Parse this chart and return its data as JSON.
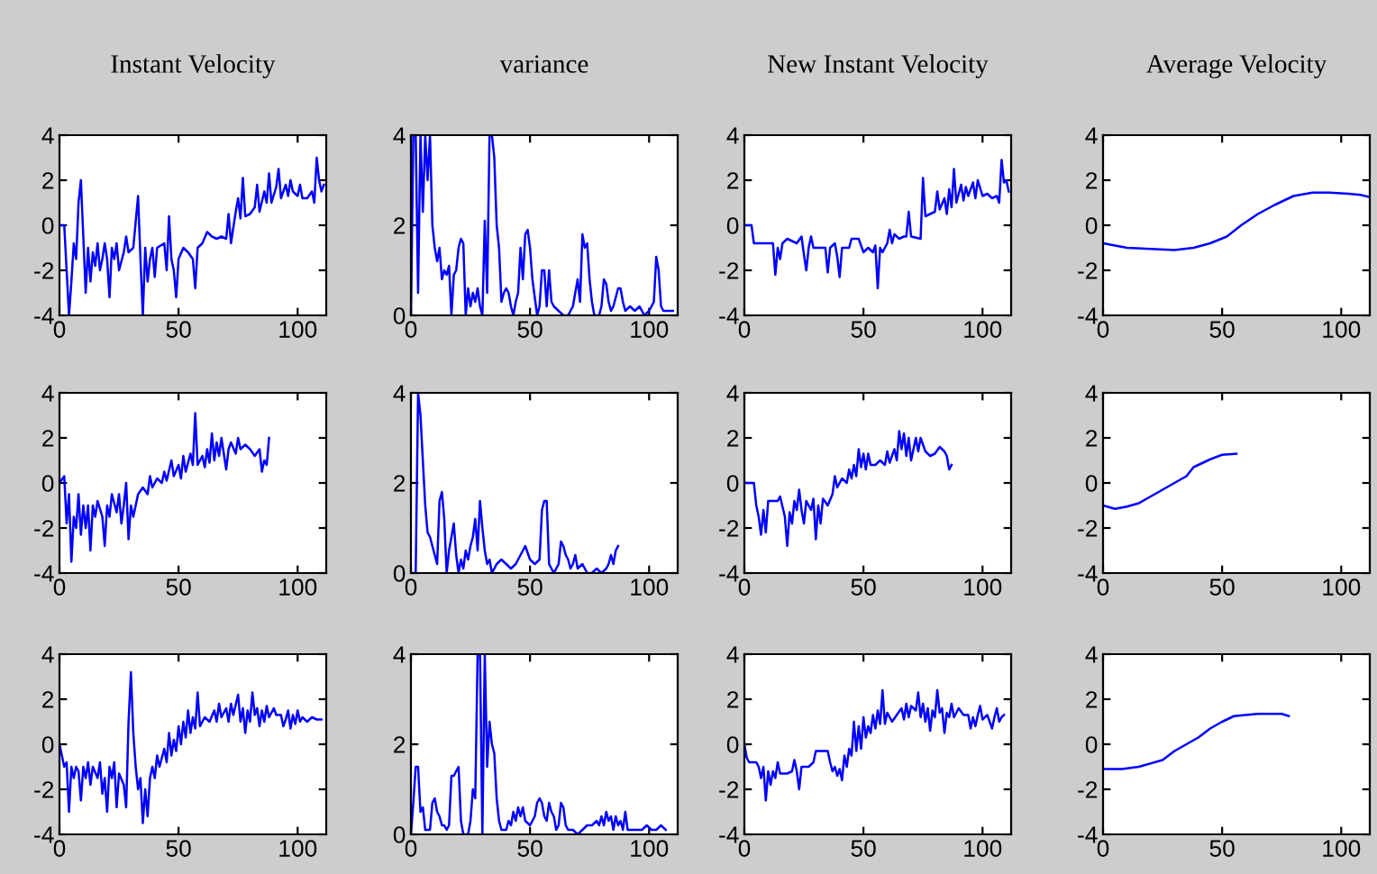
{
  "chart_data": [
    {
      "type": "line",
      "title": "Instant Velocity",
      "xlim": [
        0,
        112
      ],
      "xticks": [
        0,
        50,
        100
      ],
      "ylim": [
        -4,
        4
      ],
      "yticks": [
        -4,
        -2,
        0,
        2,
        4
      ],
      "series": [
        {
          "color": "#0000ff",
          "x": [
            0,
            2,
            3,
            4,
            5,
            6,
            7,
            8,
            9,
            10,
            11,
            12,
            13,
            14,
            15,
            16,
            17,
            18,
            19,
            20,
            21,
            22,
            23,
            24,
            25,
            27,
            28,
            29,
            31,
            33,
            34,
            35,
            36,
            37,
            38,
            39,
            40,
            41,
            44,
            45,
            46,
            47,
            48,
            49,
            50,
            52,
            54,
            56,
            57,
            58,
            60,
            62,
            64,
            66,
            68,
            70,
            71,
            72,
            74,
            75,
            76,
            77,
            78,
            80,
            82,
            83,
            84,
            86,
            87,
            88,
            89,
            91,
            92,
            93,
            95,
            96,
            97,
            98,
            100,
            101,
            102,
            104,
            106,
            107,
            108,
            109,
            110,
            111
          ],
          "values": [
            0,
            0,
            -2,
            -4,
            -2.5,
            -0.8,
            -1.5,
            1,
            2,
            -0.5,
            -3,
            -1,
            -2.5,
            -1.2,
            -1.8,
            -0.8,
            -2,
            -1.5,
            -0.8,
            -1.5,
            -3.2,
            -1,
            -1.5,
            -0.8,
            -2,
            -1.2,
            -0.5,
            -1.2,
            -1,
            1.3,
            -1.5,
            -4,
            -1,
            -2.5,
            -1.5,
            -1,
            -2.3,
            -1,
            -0.8,
            -2,
            0.4,
            -1.5,
            -2,
            -3.2,
            -1.5,
            -1,
            -1.2,
            -1.5,
            -2.8,
            -1,
            -0.8,
            -0.3,
            -0.5,
            -0.6,
            -0.5,
            -0.6,
            0.5,
            -0.8,
            0.6,
            1.2,
            0.3,
            2.1,
            0.4,
            0.5,
            0.8,
            1.8,
            0.6,
            1.5,
            1,
            2.3,
            1,
            1.7,
            2.5,
            1.2,
            1.8,
            1.3,
            2,
            1.5,
            1.3,
            1.8,
            1.2,
            1.2,
            1.5,
            1,
            3,
            2,
            1.5,
            1.8
          ]
        }
      ]
    },
    {
      "type": "line",
      "title": "variance",
      "xlim": [
        0,
        112
      ],
      "xticks": [
        0,
        50,
        100
      ],
      "ylim": [
        0,
        4
      ],
      "yticks": [
        0,
        2,
        4
      ],
      "series": [
        {
          "color": "#0000ff",
          "x": [
            0,
            1,
            2,
            3,
            4,
            5,
            6,
            7,
            8,
            9,
            10,
            11,
            12,
            13,
            14,
            15,
            16,
            17,
            18,
            19,
            20,
            21,
            22,
            23,
            24,
            25,
            26,
            27,
            28,
            29,
            30,
            31,
            32,
            33,
            34,
            35,
            36,
            37,
            38,
            39,
            40,
            41,
            42,
            43,
            44,
            45,
            46,
            47,
            48,
            49,
            50,
            51,
            52,
            53,
            54,
            55,
            56,
            57,
            58,
            59,
            60,
            62,
            64,
            66,
            68,
            69,
            70,
            71,
            72,
            73,
            74,
            75,
            76,
            77,
            79,
            80,
            81,
            82,
            83,
            84,
            85,
            86,
            87,
            88,
            89,
            90,
            92,
            94,
            96,
            98,
            100,
            102,
            103,
            104,
            105,
            106,
            108,
            110
          ],
          "values": [
            0,
            4,
            4,
            0.5,
            4,
            2.3,
            4,
            3,
            4,
            2,
            1.5,
            1.2,
            1.5,
            0.8,
            1,
            0.9,
            1.1,
            0,
            0.9,
            1,
            1.5,
            1.7,
            1.6,
            0,
            0.6,
            0.2,
            0.5,
            0.3,
            0.6,
            0.2,
            0,
            2.1,
            0.5,
            4,
            4,
            3.5,
            2,
            1.5,
            0.3,
            0.5,
            0.6,
            0.5,
            0.2,
            0,
            0.3,
            0.5,
            1.5,
            0.8,
            1.8,
            1.9,
            1.5,
            0.8,
            0.4,
            0,
            0.2,
            1,
            1,
            0.2,
            1,
            0.3,
            0.2,
            0.1,
            0,
            0,
            0.2,
            0.5,
            0.8,
            0.3,
            1.8,
            1.5,
            1.6,
            0.8,
            0.3,
            0,
            0,
            0.2,
            0.8,
            0.7,
            0.3,
            0.1,
            0.2,
            0.4,
            0.6,
            0.6,
            0.3,
            0.1,
            0.2,
            0.1,
            0.2,
            0,
            0.1,
            0.3,
            1.3,
            1,
            0.2,
            0.1,
            0.1,
            0.1
          ]
        }
      ]
    },
    {
      "type": "line",
      "title": "New Instant Velocity",
      "xlim": [
        0,
        112
      ],
      "xticks": [
        0,
        50,
        100
      ],
      "ylim": [
        -4,
        4
      ],
      "yticks": [
        -4,
        -2,
        0,
        2,
        4
      ],
      "series": [
        {
          "color": "#0000ff",
          "x": [
            0,
            3,
            4,
            12,
            13,
            14,
            15,
            16,
            18,
            22,
            24,
            25,
            26,
            27,
            28,
            29,
            34,
            35,
            36,
            38,
            39,
            40,
            41,
            44,
            45,
            48,
            50,
            52,
            54,
            55,
            56,
            57,
            58,
            60,
            61,
            62,
            63,
            65,
            67,
            68,
            69,
            70,
            74,
            75,
            76,
            78,
            80,
            81,
            82,
            84,
            85,
            86,
            87,
            88,
            89,
            91,
            92,
            93,
            94,
            96,
            97,
            98,
            100,
            102,
            104,
            106,
            107,
            108,
            109,
            110,
            111
          ],
          "values": [
            0,
            0,
            -0.8,
            -0.8,
            -2.2,
            -1,
            -1.5,
            -0.8,
            -0.6,
            -0.8,
            -0.5,
            -1.3,
            -2,
            -1,
            -0.5,
            -1,
            -1,
            -2.1,
            -1,
            -0.8,
            -1.4,
            -2.3,
            -1,
            -1,
            -0.6,
            -0.6,
            -1.2,
            -1,
            -1.2,
            -0.9,
            -2.8,
            -1,
            -1.2,
            -0.8,
            -0.2,
            -0.8,
            -0.4,
            -0.6,
            -0.5,
            -0.5,
            0.6,
            -0.5,
            -0.6,
            2.1,
            0.4,
            0.5,
            0.6,
            1.5,
            0.7,
            1.2,
            0.5,
            1.6,
            0.8,
            2.5,
            1,
            1.8,
            1.1,
            1.7,
            1.3,
            1.9,
            1.2,
            2,
            1.3,
            1.4,
            1.2,
            1.3,
            1,
            2.9,
            1.9,
            2,
            1.5
          ]
        }
      ]
    },
    {
      "type": "line",
      "title": "Average Velocity",
      "xlim": [
        0,
        112
      ],
      "xticks": [
        0,
        50,
        100
      ],
      "ylim": [
        -4,
        4
      ],
      "yticks": [
        -4,
        -2,
        0,
        2,
        4
      ],
      "series": [
        {
          "color": "#0000ff",
          "x": [
            0,
            5,
            10,
            20,
            30,
            38,
            45,
            52,
            58,
            65,
            72,
            80,
            88,
            95,
            103,
            108,
            112
          ],
          "values": [
            -0.8,
            -0.9,
            -1,
            -1.05,
            -1.1,
            -1,
            -0.8,
            -0.5,
            0,
            0.5,
            0.9,
            1.3,
            1.45,
            1.45,
            1.4,
            1.35,
            1.25
          ]
        }
      ]
    },
    {
      "type": "line",
      "xlim": [
        0,
        112
      ],
      "xticks": [
        0,
        50,
        100
      ],
      "ylim": [
        -4,
        4
      ],
      "yticks": [
        -4,
        -2,
        0,
        2,
        4
      ],
      "series": [
        {
          "color": "#0000ff",
          "x": [
            0,
            2,
            3,
            4,
            5,
            6,
            7,
            8,
            9,
            10,
            11,
            12,
            13,
            14,
            15,
            16,
            18,
            19,
            20,
            21,
            22,
            24,
            25,
            26,
            27,
            28,
            29,
            30,
            31,
            33,
            35,
            37,
            38,
            39,
            41,
            43,
            44,
            45,
            47,
            48,
            50,
            51,
            52,
            53,
            55,
            56,
            57,
            58,
            60,
            61,
            62,
            63,
            64,
            65,
            66,
            67,
            68,
            69,
            70,
            71,
            72,
            74,
            75,
            76,
            78,
            80,
            82,
            84,
            85,
            86,
            87,
            88
          ],
          "values": [
            0,
            0.3,
            -1.8,
            -0.5,
            -3.5,
            -1.5,
            -2,
            -0.5,
            -2.3,
            -1,
            -2,
            -1,
            -3,
            -1,
            -1.5,
            -0.8,
            -1.5,
            -2.8,
            -1,
            -1.5,
            -0.5,
            -1.3,
            -0.5,
            -1.8,
            -1,
            0,
            -2.5,
            -1,
            -1.5,
            -0.5,
            -0.2,
            -0.5,
            0.3,
            -0.2,
            0.2,
            0,
            0.5,
            0.1,
            1,
            0.3,
            0.8,
            0.2,
            1.2,
            0.5,
            1.3,
            0.8,
            3.1,
            0.8,
            1.2,
            0.7,
            1.5,
            0.9,
            2.2,
            1,
            1.8,
            1.2,
            2,
            1.3,
            0.6,
            1.5,
            1.8,
            1.3,
            2,
            1.5,
            1.7,
            1.5,
            1.2,
            1.5,
            0.5,
            1,
            0.8,
            2
          ]
        }
      ]
    },
    {
      "type": "line",
      "xlim": [
        0,
        112
      ],
      "xticks": [
        0,
        50,
        100
      ],
      "ylim": [
        0,
        4
      ],
      "yticks": [
        0,
        2,
        4
      ],
      "series": [
        {
          "color": "#0000ff",
          "x": [
            0,
            2,
            3,
            4,
            5,
            6,
            7,
            8,
            9,
            10,
            11,
            12,
            13,
            14,
            15,
            16,
            17,
            18,
            19,
            20,
            21,
            22,
            23,
            24,
            25,
            26,
            27,
            28,
            29,
            30,
            31,
            32,
            33,
            34,
            36,
            38,
            40,
            42,
            44,
            46,
            48,
            50,
            52,
            54,
            55,
            56,
            57,
            58,
            60,
            62,
            63,
            64,
            65,
            66,
            67,
            68,
            69,
            70,
            72,
            74,
            76,
            78,
            80,
            82,
            83,
            84,
            85,
            86,
            87
          ],
          "values": [
            0,
            0,
            4,
            3.5,
            2.5,
            1.5,
            0.9,
            0.8,
            0.6,
            0.4,
            0.2,
            1.6,
            1.8,
            1.2,
            0,
            0.5,
            0.8,
            1.1,
            0.4,
            0,
            0.3,
            0.1,
            0.5,
            0.3,
            0.6,
            0.8,
            1.2,
            0.5,
            1.6,
            1,
            0.5,
            0.2,
            0.3,
            0,
            0.2,
            0.3,
            0.2,
            0.1,
            0.2,
            0.4,
            0.6,
            0.3,
            0.2,
            0.3,
            1.4,
            1.6,
            1.6,
            0.2,
            0,
            0.2,
            0.7,
            0.6,
            0.4,
            0.3,
            0.1,
            0.2,
            0.4,
            0.1,
            0.2,
            0,
            0,
            0.1,
            0,
            0.1,
            0.2,
            0.4,
            0.2,
            0.5,
            0.6
          ]
        }
      ]
    },
    {
      "type": "line",
      "xlim": [
        0,
        112
      ],
      "xticks": [
        0,
        50,
        100
      ],
      "ylim": [
        -4,
        4
      ],
      "yticks": [
        -4,
        -2,
        0,
        2,
        4
      ],
      "series": [
        {
          "color": "#0000ff",
          "x": [
            0,
            4,
            5,
            6,
            7,
            8,
            9,
            10,
            14,
            15,
            17,
            18,
            19,
            20,
            21,
            22,
            23,
            24,
            25,
            26,
            28,
            29,
            30,
            31,
            32,
            33,
            35,
            37,
            38,
            39,
            41,
            43,
            44,
            45,
            46,
            47,
            48,
            49,
            50,
            51,
            52,
            53,
            55,
            57,
            59,
            60,
            61,
            63,
            64,
            65,
            66,
            67,
            68,
            69,
            70,
            71,
            72,
            73,
            74,
            76,
            78,
            80,
            82,
            84,
            85,
            86,
            87
          ],
          "values": [
            0,
            0,
            -1,
            -1.5,
            -2.3,
            -1.2,
            -2.2,
            -0.8,
            -0.8,
            -0.6,
            -1.5,
            -2.8,
            -1.3,
            -1.8,
            -0.8,
            -1.2,
            -0.3,
            -1.2,
            -1.8,
            -0.8,
            -1.2,
            -0.7,
            -2.5,
            -1,
            -1.8,
            -0.7,
            -1,
            -0.5,
            0.3,
            -0.2,
            0.2,
            0,
            0.6,
            0.2,
            0.8,
            0.3,
            1.5,
            0.7,
            1.3,
            0.6,
            1.3,
            0.8,
            0.8,
            1,
            0.8,
            1.4,
            0.9,
            1.5,
            1,
            2.3,
            1.5,
            2.2,
            1.2,
            2,
            1,
            1.5,
            2,
            1.4,
            2,
            1.4,
            1.2,
            1.3,
            1.6,
            1.4,
            1.2,
            0.6,
            0.8
          ]
        }
      ]
    },
    {
      "type": "line",
      "xlim": [
        0,
        112
      ],
      "xticks": [
        0,
        50,
        100
      ],
      "ylim": [
        -4,
        4
      ],
      "yticks": [
        -4,
        -2,
        0,
        2,
        4
      ],
      "series": [
        {
          "color": "#0000ff",
          "x": [
            0,
            5,
            10,
            15,
            20,
            25,
            30,
            35,
            38,
            45,
            50,
            56
          ],
          "values": [
            -1,
            -1.15,
            -1.05,
            -0.9,
            -0.6,
            -0.3,
            0,
            0.3,
            0.7,
            1.05,
            1.25,
            1.3
          ]
        }
      ]
    },
    {
      "type": "line",
      "xlim": [
        0,
        112
      ],
      "xticks": [
        0,
        50,
        100
      ],
      "ylim": [
        -4,
        4
      ],
      "yticks": [
        -4,
        -2,
        0,
        2,
        4
      ],
      "series": [
        {
          "color": "#0000ff",
          "x": [
            0,
            1,
            2,
            3,
            4,
            5,
            6,
            7,
            8,
            9,
            10,
            11,
            12,
            13,
            14,
            16,
            17,
            18,
            19,
            20,
            21,
            22,
            23,
            24,
            25,
            27,
            28,
            29,
            30,
            31,
            32,
            33,
            34,
            35,
            36,
            37,
            38,
            39,
            40,
            41,
            42,
            44,
            45,
            46,
            47,
            48,
            49,
            50,
            51,
            52,
            53,
            54,
            55,
            56,
            57,
            58,
            59,
            61,
            63,
            65,
            66,
            67,
            68,
            70,
            71,
            72,
            73,
            75,
            76,
            77,
            78,
            79,
            80,
            81,
            82,
            83,
            84,
            85,
            86,
            87,
            88,
            90,
            91,
            93,
            94,
            95,
            96,
            97,
            98,
            99,
            100,
            101,
            102,
            104,
            106,
            108,
            110
          ],
          "values": [
            0,
            -0.5,
            -1,
            -0.8,
            -3,
            -1,
            -1.5,
            -1,
            -1.2,
            -2.5,
            -1,
            -1.5,
            -0.8,
            -1.8,
            -1,
            -1.5,
            -0.8,
            -2.2,
            -1.5,
            -3,
            -1,
            -1.5,
            -0.8,
            -2.8,
            -1.3,
            -1.8,
            -2.8,
            1,
            3.2,
            0.5,
            -1,
            -2,
            -1.5,
            -3.5,
            -2,
            -3.2,
            -1.5,
            -1,
            -1.5,
            -0.5,
            -1,
            -0.2,
            -0.8,
            0.5,
            -0.5,
            0.2,
            -0.3,
            0.8,
            0,
            1,
            0.3,
            1.5,
            0.5,
            1.2,
            0.7,
            2.3,
            0.8,
            1.2,
            1,
            1.5,
            1,
            1.8,
            1.2,
            1.6,
            1,
            1.8,
            1.3,
            2.2,
            1,
            1.6,
            0.5,
            1.5,
            1,
            2.3,
            1.3,
            1.6,
            0.8,
            1.5,
            1,
            1.7,
            1.2,
            1.6,
            1.3,
            1.3,
            0.8,
            1.1,
            1.5,
            0.7,
            1.3,
            0.9,
            1.5,
            1,
            1.2,
            1,
            1.2,
            1.1,
            1.1
          ]
        }
      ]
    },
    {
      "type": "line",
      "xlim": [
        0,
        112
      ],
      "xticks": [
        0,
        50,
        100
      ],
      "ylim": [
        0,
        4
      ],
      "yticks": [
        0,
        2,
        4
      ],
      "series": [
        {
          "color": "#0000ff",
          "x": [
            0,
            1,
            2,
            3,
            4,
            5,
            6,
            8,
            9,
            10,
            11,
            12,
            13,
            14,
            15,
            16,
            17,
            18,
            19,
            20,
            21,
            22,
            24,
            25,
            26,
            27,
            28,
            29,
            30,
            31,
            32,
            33,
            34,
            35,
            36,
            37,
            38,
            40,
            41,
            42,
            43,
            44,
            45,
            46,
            47,
            48,
            50,
            52,
            53,
            54,
            55,
            56,
            57,
            58,
            59,
            60,
            61,
            62,
            63,
            64,
            65,
            66,
            68,
            70,
            72,
            74,
            76,
            78,
            79,
            80,
            81,
            82,
            83,
            84,
            85,
            86,
            87,
            88,
            89,
            90,
            91,
            93,
            95,
            97,
            99,
            101,
            103,
            105,
            107
          ],
          "values": [
            0,
            0.7,
            1.5,
            1.5,
            0.5,
            0.6,
            0.1,
            0.1,
            0.7,
            0.8,
            0.5,
            0.4,
            0.2,
            0.2,
            0.1,
            0.2,
            1.3,
            1.3,
            1.4,
            1.5,
            0.3,
            0,
            0,
            0.3,
            1,
            0.8,
            4,
            4,
            0,
            4,
            1.5,
            2.5,
            2,
            1.8,
            0.8,
            0.3,
            0.1,
            0.1,
            0.3,
            0.2,
            0.5,
            0.3,
            0.6,
            0.4,
            0.6,
            0.3,
            0.2,
            0.4,
            0.7,
            0.8,
            0.7,
            0.4,
            0.3,
            0.7,
            0.5,
            0.4,
            0.1,
            0.2,
            0.7,
            0.6,
            0.2,
            0.1,
            0.1,
            0,
            0.1,
            0.2,
            0.2,
            0.3,
            0.2,
            0.4,
            0.2,
            0.5,
            0.3,
            0.4,
            0.1,
            0.4,
            0.2,
            0.3,
            0.1,
            0.5,
            0.1,
            0.1,
            0.1,
            0.1,
            0.2,
            0.1,
            0.1,
            0.2,
            0.1
          ]
        }
      ]
    },
    {
      "type": "line",
      "xlim": [
        0,
        112
      ],
      "xticks": [
        0,
        50,
        100
      ],
      "ylim": [
        -4,
        4
      ],
      "yticks": [
        -4,
        -2,
        0,
        2,
        4
      ],
      "series": [
        {
          "color": "#0000ff",
          "x": [
            0,
            1,
            2,
            5,
            6,
            7,
            8,
            9,
            10,
            11,
            12,
            13,
            14,
            15,
            18,
            20,
            21,
            22,
            23,
            24,
            27,
            29,
            30,
            35,
            36,
            37,
            38,
            39,
            40,
            41,
            42,
            43,
            44,
            45,
            46,
            47,
            48,
            49,
            50,
            51,
            52,
            53,
            54,
            55,
            56,
            57,
            58,
            59,
            60,
            62,
            64,
            66,
            67,
            68,
            69,
            70,
            72,
            73,
            74,
            75,
            76,
            77,
            78,
            79,
            80,
            81,
            82,
            83,
            84,
            85,
            86,
            87,
            88,
            90,
            92,
            94,
            95,
            96,
            97,
            98,
            99,
            100,
            102,
            104,
            105,
            106,
            107,
            108,
            109
          ],
          "values": [
            0,
            -0.6,
            -0.8,
            -0.8,
            -1,
            -1.5,
            -1,
            -2.5,
            -1.2,
            -1.8,
            -1.2,
            -1.5,
            -0.8,
            -1.3,
            -1.3,
            -1.2,
            -0.7,
            -1.2,
            -2,
            -1,
            -1,
            -0.8,
            -0.3,
            -0.3,
            -0.8,
            -1.2,
            -1,
            -1.4,
            -1.1,
            -1.6,
            -0.5,
            -1,
            -0.2,
            -0.5,
            1,
            -0.3,
            0.8,
            -0.2,
            1.2,
            0.3,
            0.8,
            0.5,
            1.3,
            0.7,
            1.5,
            0.9,
            2.4,
            0.9,
            1.4,
            1,
            1.3,
            1.6,
            1.1,
            1.8,
            1.2,
            1.7,
            1.5,
            2.3,
            1.2,
            1.8,
            1,
            1.6,
            0.6,
            1.5,
            1.2,
            2.4,
            1.4,
            1.6,
            0.5,
            1.4,
            1.2,
            1.8,
            1.2,
            1.6,
            1.3,
            1.3,
            0.7,
            1.2,
            0.8,
            1.3,
            1.7,
            1.1,
            1.3,
            0.7,
            1.2,
            1.6,
            1,
            1.2,
            1.3
          ]
        }
      ]
    },
    {
      "type": "line",
      "xlim": [
        0,
        112
      ],
      "xticks": [
        0,
        50,
        100
      ],
      "ylim": [
        -4,
        4
      ],
      "yticks": [
        -4,
        -2,
        0,
        2,
        4
      ],
      "series": [
        {
          "color": "#0000ff",
          "x": [
            0,
            8,
            15,
            25,
            30,
            35,
            40,
            45,
            50,
            55,
            60,
            65,
            75,
            78
          ],
          "values": [
            -1.1,
            -1.1,
            -1,
            -0.7,
            -0.3,
            0,
            0.3,
            0.7,
            1,
            1.25,
            1.3,
            1.35,
            1.35,
            1.25
          ]
        }
      ]
    }
  ]
}
